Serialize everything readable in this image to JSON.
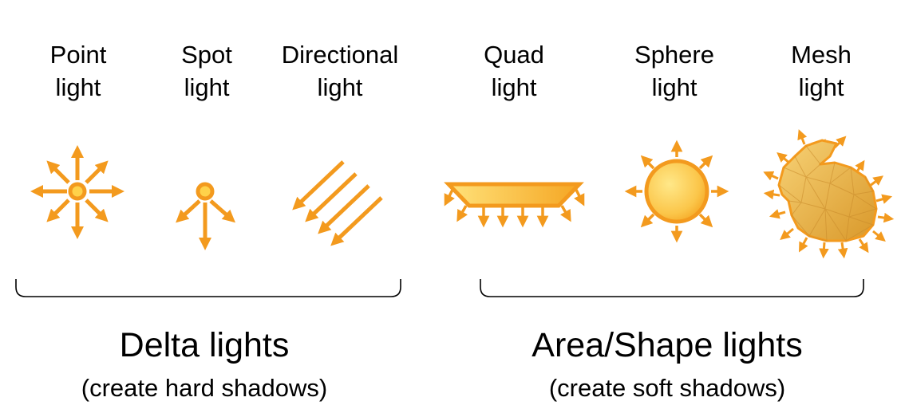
{
  "accent_color": "#F39A1E",
  "fill_light": "#FFE27A",
  "fill_dark": "#F5A623",
  "light_types": [
    {
      "line1": "Point",
      "line2": "light",
      "icon": "point-light-icon"
    },
    {
      "line1": "Spot",
      "line2": "light",
      "icon": "spot-light-icon"
    },
    {
      "line1": "Directional",
      "line2": "light",
      "icon": "directional-light-icon"
    },
    {
      "line1": "Quad",
      "line2": "light",
      "icon": "quad-light-icon"
    },
    {
      "line1": "Sphere",
      "line2": "light",
      "icon": "sphere-light-icon"
    },
    {
      "line1": "Mesh",
      "line2": "light",
      "icon": "mesh-light-icon"
    }
  ],
  "groups": [
    {
      "title": "Delta lights",
      "subtitle": "(create hard shadows)"
    },
    {
      "title": "Area/Shape lights",
      "subtitle": "(create soft shadows)"
    }
  ]
}
